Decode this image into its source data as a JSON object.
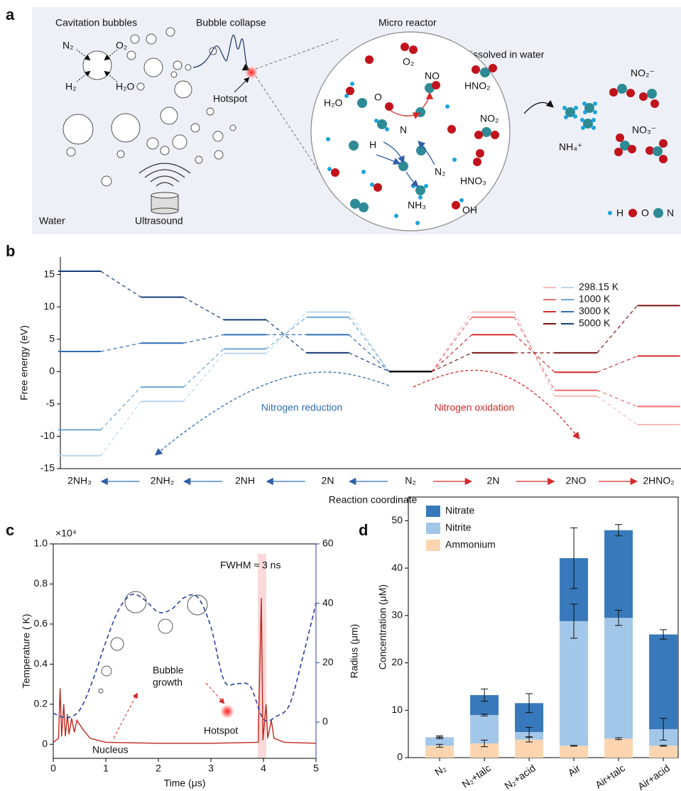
{
  "panel_a": {
    "label": "a",
    "cavitation_bubbles": "Cavitation bubbles",
    "bubble_collapse": "Bubble collapse",
    "micro_reactor": "Micro reactor",
    "products": "Products dissolved in water",
    "gases": [
      "N₂",
      "O₂",
      "H₂",
      "H₂O"
    ],
    "hotspot": "Hotspot",
    "water": "Water",
    "ultrasound": "Ultrasound",
    "reactor_species": [
      "O₂",
      "NO",
      "H₂O",
      "O",
      "HNO₂",
      "NO₂",
      "N",
      "H",
      "N₂",
      "HNO₃",
      "NH₃",
      "OH"
    ],
    "product_species": [
      "NO₂⁻",
      "NO₃⁻",
      "NH₄⁺"
    ],
    "legend": [
      "H",
      "O",
      "N"
    ]
  },
  "chart_data": [
    {
      "panel": "b",
      "type": "level",
      "categories": [
        "2NH₃",
        "2NH₂",
        "2NH",
        "2N",
        "N₂",
        "2N",
        "2NO",
        "2HNO₂"
      ],
      "series": [
        {
          "name": "298.15 K",
          "color_reduction": "#bcd6ec",
          "color_oxidation": "#f6baba",
          "values": [
            -13,
            -4.6,
            2.8,
            9.2,
            0,
            9.2,
            -3.8,
            -8.2
          ]
        },
        {
          "name": "1000 K",
          "color_reduction": "#6aa6d4",
          "color_oxidation": "#ec6e6e",
          "values": [
            -9,
            -2.4,
            3.5,
            8.4,
            0,
            8.4,
            -2.9,
            -5.4
          ]
        },
        {
          "name": "3000 K",
          "color_reduction": "#2f6cb3",
          "color_oxidation": "#d52a2a",
          "values": [
            3.1,
            4.4,
            5.7,
            5.7,
            0,
            5.7,
            -0.1,
            2.4
          ]
        },
        {
          "name": "5000 K",
          "color_reduction": "#163d78",
          "color_oxidation": "#7d1414",
          "values": [
            15.5,
            11.5,
            8,
            2.9,
            0,
            2.9,
            2.9,
            10.2
          ]
        }
      ],
      "center_color": "#000000",
      "ylim": [
        -15,
        17.7
      ],
      "yticks": [
        -15,
        -10,
        -5,
        0,
        5,
        10,
        15
      ],
      "ylabel": "Free energy (eV)",
      "xlabel": "Reaction coordinate",
      "annotations": [
        "Nitrogen reduction",
        "Nitrogen oxidation"
      ],
      "legend": "upper right"
    },
    {
      "panel": "c",
      "type": "line",
      "multiplier": "×10⁴",
      "series": [
        {
          "color": "#c0281e",
          "smooth": false,
          "dashed": false,
          "x": [
            0,
            0.1,
            0.13,
            0.16,
            0.2,
            0.23,
            0.27,
            0.3,
            0.35,
            0.4,
            0.45,
            0.55,
            0.7,
            1,
            2,
            3,
            3.9,
            3.96,
            3.99,
            4.05,
            4.08,
            4.15,
            4.2,
            4.4,
            5
          ],
          "values": [
            0.01,
            0.03,
            0.28,
            0.04,
            0.2,
            0.04,
            0.15,
            0.05,
            0.13,
            0.06,
            0.12,
            0.08,
            0.03,
            0.01,
            0.005,
            0.005,
            0.01,
            0.73,
            0.02,
            0.2,
            0.03,
            0.12,
            0.03,
            0.01,
            0.005
          ]
        },
        {
          "color": "#2b3f9e",
          "axis": "y2",
          "smooth": true,
          "dashed": true,
          "x": [
            0,
            0.25,
            0.5,
            0.75,
            1,
            1.25,
            1.5,
            1.75,
            2,
            2.25,
            2.5,
            2.75,
            3,
            3.25,
            3.5,
            3.75,
            4,
            4.25,
            4.5,
            4.75,
            5
          ],
          "values": [
            3,
            1.5,
            4,
            14,
            27,
            38,
            43,
            41,
            37,
            38,
            42,
            42,
            32,
            14,
            13,
            12,
            1,
            2,
            6,
            22,
            40
          ]
        }
      ],
      "xlim": [
        0,
        5
      ],
      "xticks": [
        0,
        1,
        2,
        3,
        4,
        5
      ],
      "ylim": [
        -0.07,
        1
      ],
      "yticks": [
        0,
        0.2,
        0.4,
        0.6,
        0.8,
        {
          "value": 1,
          "label": "1.0"
        }
      ],
      "y2lim": [
        -12.2,
        60
      ],
      "y2ticks": [
        0,
        20,
        40,
        60
      ],
      "xlabel": "Time (μs)",
      "ylabel": "Temperature ( K)",
      "y2label": "Radius (μm)",
      "annotations": [
        "FWHM ≈ 3 ns",
        "Bubble",
        "growth",
        "Hotspot",
        "Nucleus"
      ]
    },
    {
      "panel": "d",
      "type": "stacked_bar",
      "categories": [
        "N₂",
        "N₂+talc",
        "N₂+acid",
        "Air",
        "Air+talc",
        "Air+acid"
      ],
      "series": [
        {
          "name": "Ammonium",
          "color": "#fcd5b0",
          "values": [
            2.5,
            3,
            3.8,
            2.5,
            4,
            2.5
          ],
          "errors": [
            0.3,
            0.7,
            0.5,
            0.1,
            0.2,
            0.1
          ]
        },
        {
          "name": "Nitrite",
          "color": "#a3c7e8",
          "values": [
            1.8,
            6,
            1.6,
            26.3,
            25.5,
            3.5
          ],
          "errors": [
            0.3,
            0.2,
            1,
            3.6,
            1.6,
            2.3
          ]
        },
        {
          "name": "Nitrate",
          "color": "#3779ba",
          "values": [
            0,
            4.2,
            6.1,
            13.3,
            18.5,
            20
          ],
          "errors": [
            0,
            1.3,
            2,
            6.4,
            1.2,
            1
          ]
        }
      ],
      "ylim": [
        0,
        55
      ],
      "yticks": [
        0,
        10,
        20,
        30,
        40,
        50
      ],
      "ylabel": "Concentration (μM)",
      "legend": "upper left"
    }
  ]
}
